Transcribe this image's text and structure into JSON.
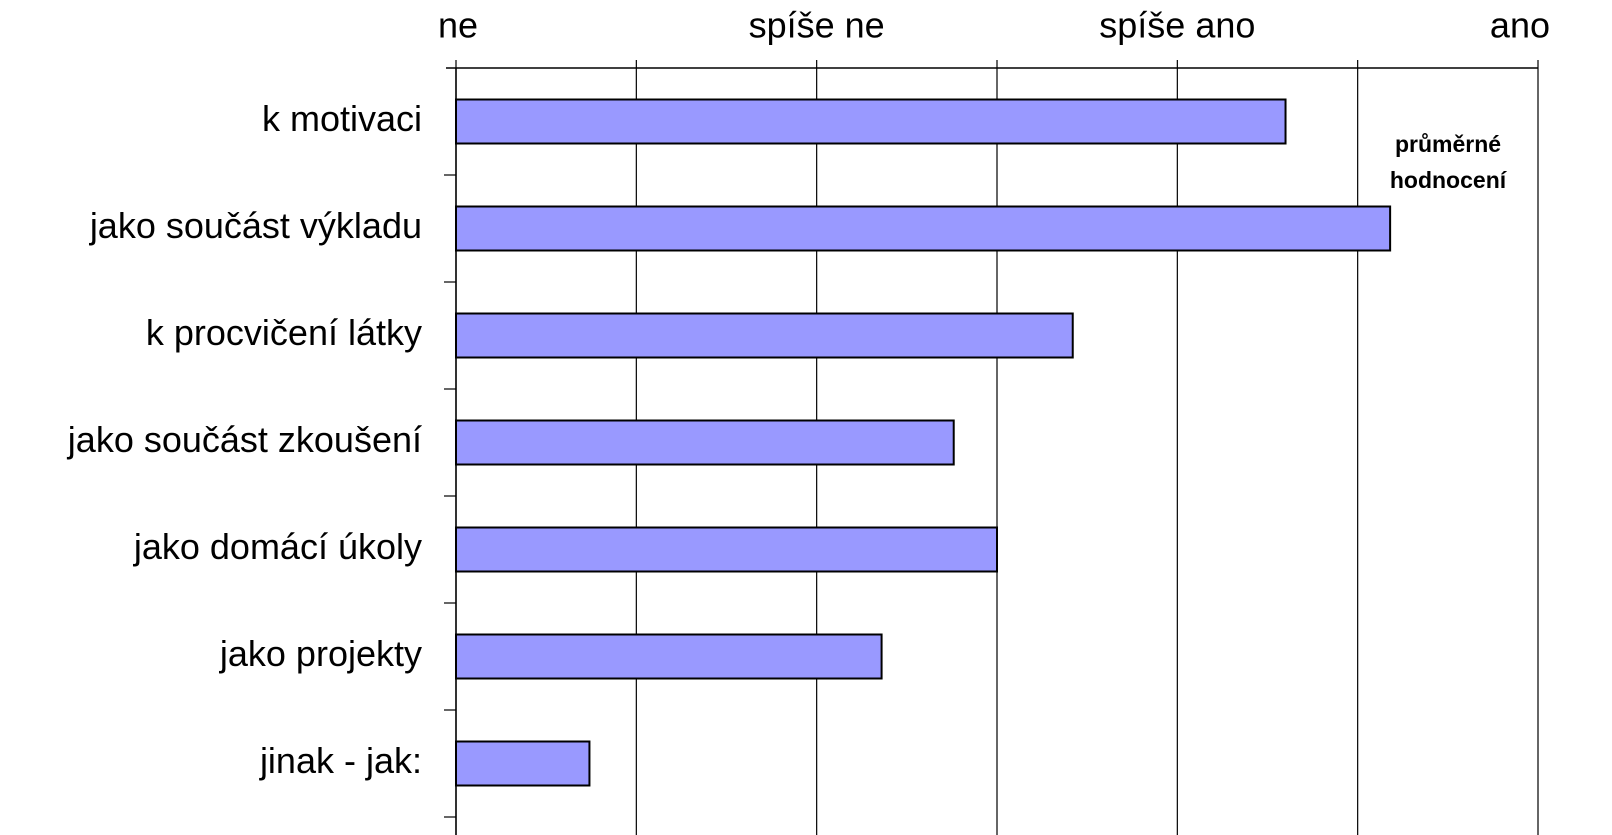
{
  "chart_data": {
    "type": "barh",
    "categories": [
      "k motivaci",
      "jako součást výkladu",
      "k procvičení látky",
      "jako součást zkoušení",
      "jako domácí úkoly",
      "jako projekty",
      "jinak - jak:"
    ],
    "values": [
      3.3,
      3.59,
      2.71,
      2.38,
      2.5,
      2.18,
      1.37
    ],
    "color": "#9999ff",
    "xlim": [
      1,
      4
    ],
    "xticks": [
      {
        "value": 1,
        "label": "ne"
      },
      {
        "value": 2,
        "label": "spíše  ne"
      },
      {
        "value": 3,
        "label": "spíše ano"
      },
      {
        "value": 4,
        "label": "ano"
      }
    ],
    "minor_xticks": [
      1.5,
      2.5,
      3.5
    ],
    "grid": true,
    "annotation": [
      "průměrné",
      "hodnocení"
    ]
  }
}
